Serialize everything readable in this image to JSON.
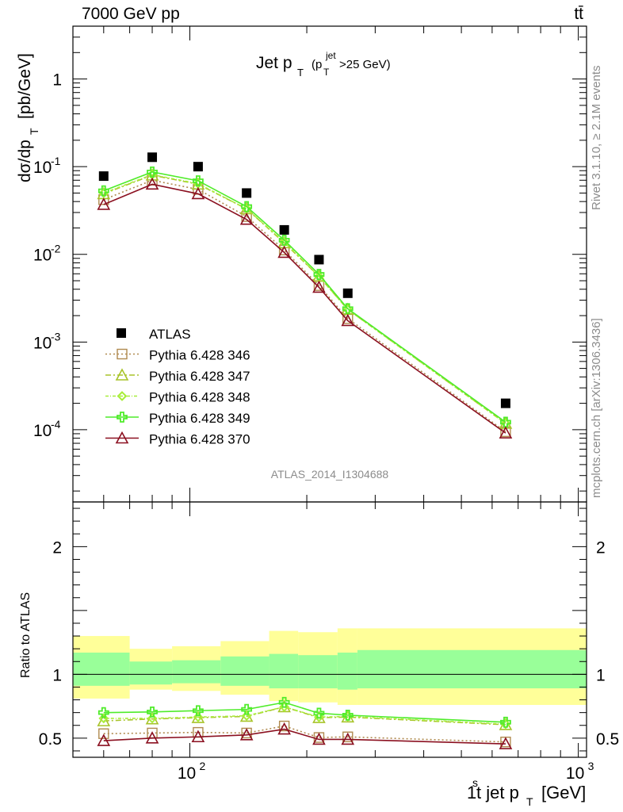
{
  "header": {
    "left": "7000 GeV pp",
    "right": "tt̄"
  },
  "side_labels": {
    "rivet": "Rivet 3.1.10, ≥ 2.1M events",
    "mcplots": "mcplots.cern.ch [arXiv:1306.3436]"
  },
  "watermark": "ATLAS_2014_I1304688",
  "colors": {
    "atlas": "#000000",
    "p346": "#b08a4f",
    "p347": "#a8c42a",
    "p348": "#a8ee3a",
    "p349": "#4fec2a",
    "p370": "#8b1020",
    "band_outer": "#ffff99",
    "band_inner": "#99ff99"
  },
  "chart_data": [
    {
      "type": "scatter",
      "title": "Jet p_T (p_T^jet>25 GeV)",
      "xlabel": "1st jet p_T [GeV]",
      "ylabel": "dσ/dp_T [pb/GeV]",
      "xscale": "log",
      "yscale": "log",
      "xlim": [
        50,
        1050
      ],
      "ylim": [
        1.5e-05,
        4
      ],
      "x_ticks": [
        {
          "value": 100,
          "label": "10^2"
        },
        {
          "value": 1000,
          "label": "10^3"
        }
      ],
      "y_ticks": [
        {
          "value": 0.0001,
          "label": "10^-4"
        },
        {
          "value": 0.001,
          "label": "10^-3"
        },
        {
          "value": 0.01,
          "label": "10^-2"
        },
        {
          "value": 0.1,
          "label": "10^-1"
        },
        {
          "value": 1,
          "label": "1"
        }
      ],
      "legend_position": "bottom-left",
      "x": [
        60,
        80,
        105,
        140,
        175,
        215,
        255,
        650
      ],
      "data": {
        "name": "ATLAS",
        "values": [
          0.078,
          0.128,
          0.1,
          0.05,
          0.019,
          0.0087,
          0.0036,
          0.0002
        ]
      },
      "series": [
        {
          "name": "Pythia 6.428 346",
          "style": "dotted",
          "marker": "square",
          "values": [
            0.042,
            0.07,
            0.055,
            0.027,
            0.0112,
            0.0044,
            0.00185,
            9.5e-05
          ]
        },
        {
          "name": "Pythia 6.428 347",
          "style": "dashdot",
          "marker": "triangle",
          "values": [
            0.049,
            0.08,
            0.063,
            0.033,
            0.0135,
            0.0056,
            0.00235,
            0.000118
          ]
        },
        {
          "name": "Pythia 6.428 348",
          "style": "dashdot",
          "marker": "diamond",
          "values": [
            0.05,
            0.081,
            0.064,
            0.033,
            0.0138,
            0.0056,
            0.00235,
            0.000118
          ]
        },
        {
          "name": "Pythia 6.428 349",
          "style": "solid",
          "marker": "cross",
          "values": [
            0.053,
            0.087,
            0.069,
            0.035,
            0.0145,
            0.0059,
            0.0024,
            0.000122
          ]
        },
        {
          "name": "Pythia 6.428 370",
          "style": "solid",
          "marker": "triangle",
          "values": [
            0.037,
            0.063,
            0.049,
            0.025,
            0.0105,
            0.0042,
            0.00175,
            9.15e-05
          ]
        }
      ]
    },
    {
      "type": "line",
      "xlabel": "1st jet p_T [GeV]",
      "ylabel": "Ratio to ATLAS",
      "xscale": "log",
      "xlim": [
        50,
        1050
      ],
      "ylim": [
        0.35,
        2.35
      ],
      "y_ticks": [
        {
          "value": 0.5,
          "label": "0.5"
        },
        {
          "value": 1,
          "label": "1"
        },
        {
          "value": 2,
          "label": "2"
        }
      ],
      "reference_line": 1,
      "bin_edges": [
        50,
        70,
        90,
        120,
        160,
        190,
        240,
        270,
        1050
      ],
      "band_outer": {
        "low": [
          0.81,
          0.88,
          0.87,
          0.84,
          0.79,
          0.78,
          0.76,
          0.76
        ],
        "high": [
          1.3,
          1.2,
          1.22,
          1.26,
          1.34,
          1.33,
          1.36,
          1.36
        ]
      },
      "band_inner": {
        "low": [
          0.91,
          0.92,
          0.93,
          0.91,
          0.89,
          0.89,
          0.88,
          0.89
        ],
        "high": [
          1.17,
          1.1,
          1.11,
          1.14,
          1.16,
          1.15,
          1.17,
          1.19
        ]
      },
      "x": [
        60,
        80,
        105,
        140,
        175,
        215,
        255,
        650
      ],
      "series": [
        {
          "name": "Pythia 6.428 346",
          "values": [
            0.535,
            0.54,
            0.545,
            0.54,
            0.595,
            0.505,
            0.51,
            0.47
          ]
        },
        {
          "name": "Pythia 6.428 347",
          "values": [
            0.635,
            0.65,
            0.66,
            0.67,
            0.745,
            0.66,
            0.665,
            0.605
          ]
        },
        {
          "name": "Pythia 6.428 348",
          "values": [
            0.655,
            0.655,
            0.665,
            0.675,
            0.745,
            0.665,
            0.67,
            0.61
          ]
        },
        {
          "name": "Pythia 6.428 349",
          "values": [
            0.7,
            0.705,
            0.715,
            0.725,
            0.78,
            0.695,
            0.68,
            0.625
          ]
        },
        {
          "name": "Pythia 6.428 370",
          "values": [
            0.48,
            0.5,
            0.51,
            0.525,
            0.57,
            0.49,
            0.49,
            0.455
          ]
        }
      ]
    }
  ]
}
